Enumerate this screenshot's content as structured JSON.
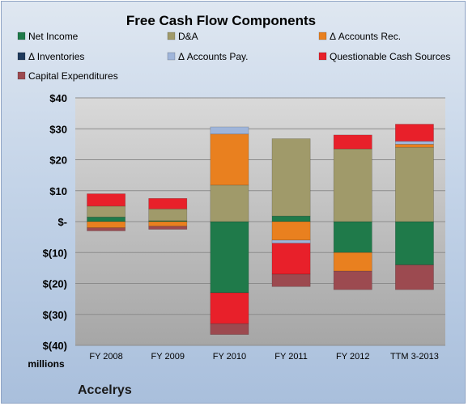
{
  "chart_data": {
    "type": "bar",
    "stacked": true,
    "title": "Free Cash Flow Components",
    "categories": [
      "FY 2008",
      "FY 2009",
      "FY 2010",
      "FY 2011",
      "FY 2012",
      "TTM 3-2013"
    ],
    "y_tick_labels": [
      "$40",
      "$30",
      "$20",
      "$10",
      "$-",
      "$(10)",
      "$(20)",
      "$(30)",
      "$(40)"
    ],
    "ylim": [
      -40,
      40
    ],
    "units_label": "millions",
    "company": "Accelrys",
    "grid": true,
    "legend_position": "top",
    "series": [
      {
        "name": "Net Income",
        "color": "#1f7a4a",
        "values": [
          1.5,
          0.3,
          -23,
          1.8,
          -10,
          -14
        ]
      },
      {
        "name": "D&A",
        "color": "#a09a6a",
        "values": [
          3.5,
          3.8,
          11.8,
          25,
          23.5,
          24
        ]
      },
      {
        "name": "Δ Accounts Rec.",
        "color": "#e9801f",
        "values": [
          -2,
          -1.5,
          16.5,
          -6,
          -6,
          1
        ]
      },
      {
        "name": "Δ Inventories",
        "color": "#1f3a5c",
        "values": [
          0,
          0,
          0,
          0,
          0,
          0
        ]
      },
      {
        "name": "Δ Accounts Pay.",
        "color": "#9fb5da",
        "values": [
          0,
          0,
          2.3,
          -1,
          0,
          1
        ]
      },
      {
        "name": "Questionable Cash Sources",
        "color": "#e8202a",
        "values": [
          4,
          3.4,
          -10,
          -10,
          4.5,
          5.5
        ]
      },
      {
        "name": "Capital Expenditures",
        "color": "#9c4a50",
        "values": [
          -1,
          -1,
          -3.5,
          -4,
          -6,
          -8
        ]
      }
    ]
  }
}
